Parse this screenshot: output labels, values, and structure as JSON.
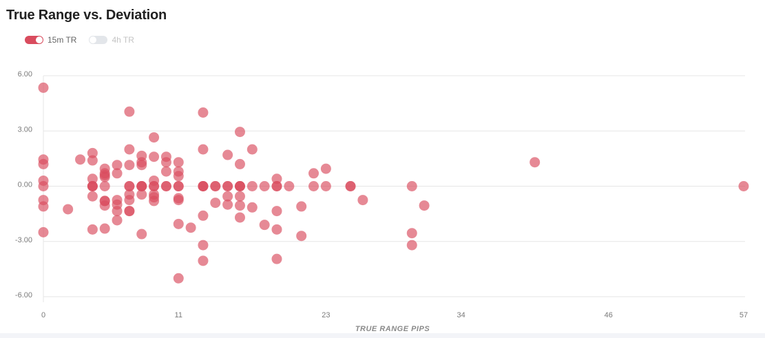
{
  "chart_data": {
    "type": "scatter",
    "title": "True Range vs. Deviation",
    "xlabel": "TRUE RANGE PIPS",
    "ylabel": "",
    "xlim": [
      0,
      57
    ],
    "ylim": [
      -6,
      6
    ],
    "xticks": [
      "0",
      "11",
      "23",
      "34",
      "46",
      "57"
    ],
    "yticks": [
      "6.00",
      "3.00",
      "0.00",
      "-3.00",
      "-6.00"
    ],
    "grid": true,
    "legend_position": "top-left",
    "series": [
      {
        "name": "15m TR",
        "enabled": true,
        "color": "#d94c5e",
        "points": [
          [
            0,
            5.35
          ],
          [
            0,
            1.45
          ],
          [
            0,
            1.2
          ],
          [
            0,
            0.3
          ],
          [
            0,
            0
          ],
          [
            0,
            -0.75
          ],
          [
            0,
            -1.1
          ],
          [
            0,
            -2.5
          ],
          [
            2,
            -1.25
          ],
          [
            3,
            1.45
          ],
          [
            4,
            1.8
          ],
          [
            4,
            1.4
          ],
          [
            4,
            0.4
          ],
          [
            4,
            0
          ],
          [
            4,
            0
          ],
          [
            4,
            0
          ],
          [
            4,
            -0.55
          ],
          [
            4,
            -2.35
          ],
          [
            5,
            0.95
          ],
          [
            5,
            0.7
          ],
          [
            5,
            0.6
          ],
          [
            5,
            0.5
          ],
          [
            5,
            0
          ],
          [
            5,
            -0.8
          ],
          [
            5,
            -0.8
          ],
          [
            5,
            -1.05
          ],
          [
            5,
            -2.3
          ],
          [
            6,
            1.15
          ],
          [
            6,
            0.7
          ],
          [
            6,
            -0.75
          ],
          [
            6,
            -1
          ],
          [
            6,
            -1.35
          ],
          [
            6,
            -1.85
          ],
          [
            7,
            4.05
          ],
          [
            7,
            2.0
          ],
          [
            7,
            1.15
          ],
          [
            7,
            0
          ],
          [
            7,
            0
          ],
          [
            7,
            -0.45
          ],
          [
            7,
            -0.75
          ],
          [
            7,
            -1.35
          ],
          [
            7,
            -1.35
          ],
          [
            8,
            1.65
          ],
          [
            8,
            1.3
          ],
          [
            8,
            1.15
          ],
          [
            8,
            0
          ],
          [
            8,
            0
          ],
          [
            8,
            0
          ],
          [
            8,
            -0.45
          ],
          [
            8,
            -2.6
          ],
          [
            9,
            2.65
          ],
          [
            9,
            1.6
          ],
          [
            9,
            0.3
          ],
          [
            9,
            0
          ],
          [
            9,
            0
          ],
          [
            9,
            -0.45
          ],
          [
            9,
            -0.6
          ],
          [
            9,
            -0.8
          ],
          [
            10,
            1.6
          ],
          [
            10,
            1.3
          ],
          [
            10,
            0.8
          ],
          [
            10,
            0
          ],
          [
            10,
            0
          ],
          [
            11,
            1.3
          ],
          [
            11,
            0.8
          ],
          [
            11,
            0.55
          ],
          [
            11,
            0
          ],
          [
            11,
            0
          ],
          [
            11,
            -0.65
          ],
          [
            11,
            -0.75
          ],
          [
            11,
            -2.05
          ],
          [
            11,
            -5.0
          ],
          [
            12,
            -2.25
          ],
          [
            13,
            4.0
          ],
          [
            13,
            2.0
          ],
          [
            13,
            0
          ],
          [
            13,
            0
          ],
          [
            13,
            0
          ],
          [
            13,
            -1.6
          ],
          [
            13,
            -3.2
          ],
          [
            13,
            -4.05
          ],
          [
            14,
            0
          ],
          [
            14,
            0
          ],
          [
            14,
            -0.9
          ],
          [
            15,
            1.7
          ],
          [
            15,
            0
          ],
          [
            15,
            0
          ],
          [
            15,
            -0.55
          ],
          [
            15,
            -1.0
          ],
          [
            16,
            2.95
          ],
          [
            16,
            1.2
          ],
          [
            16,
            0
          ],
          [
            16,
            0
          ],
          [
            16,
            0
          ],
          [
            16,
            -0.55
          ],
          [
            16,
            -1.05
          ],
          [
            16,
            -1.7
          ],
          [
            17,
            2.0
          ],
          [
            17,
            0
          ],
          [
            17,
            -1.15
          ],
          [
            18,
            0
          ],
          [
            18,
            -2.1
          ],
          [
            19,
            0.4
          ],
          [
            19,
            0
          ],
          [
            19,
            0
          ],
          [
            19,
            -1.35
          ],
          [
            19,
            -2.35
          ],
          [
            19,
            -3.95
          ],
          [
            20,
            0
          ],
          [
            21,
            -1.1
          ],
          [
            21,
            -2.7
          ],
          [
            22,
            0.7
          ],
          [
            22,
            0
          ],
          [
            23,
            0.95
          ],
          [
            23,
            0
          ],
          [
            25,
            0
          ],
          [
            25,
            0
          ],
          [
            26,
            -0.75
          ],
          [
            30,
            0
          ],
          [
            30,
            -2.55
          ],
          [
            30,
            -3.2
          ],
          [
            31,
            -1.05
          ],
          [
            40,
            1.3
          ],
          [
            57,
            0
          ]
        ]
      },
      {
        "name": "4h TR",
        "enabled": false,
        "color": "#dfe2e6",
        "points": []
      }
    ]
  }
}
